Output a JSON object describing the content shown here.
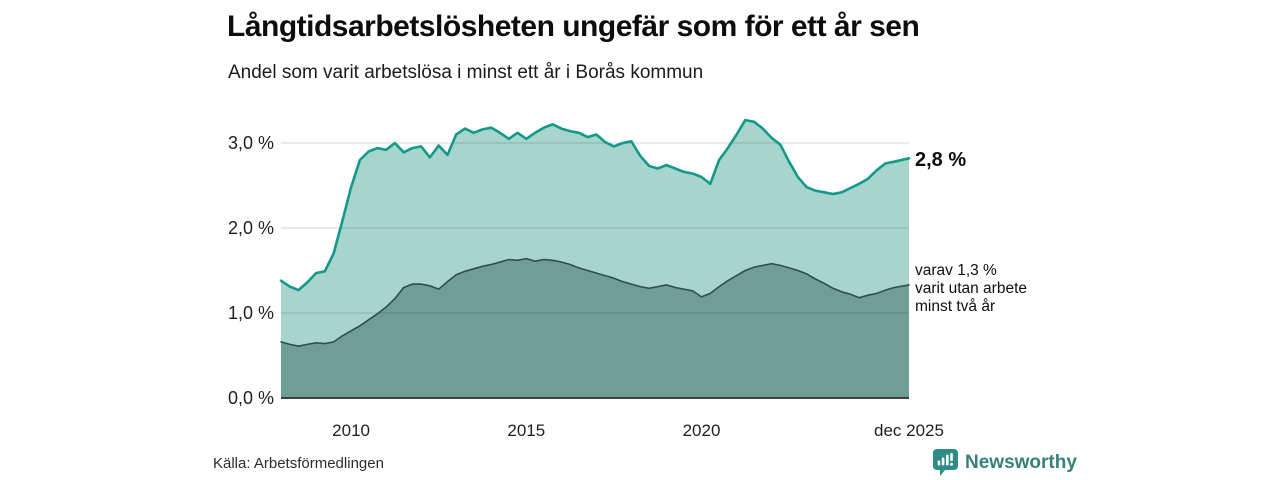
{
  "header": {
    "title": "Långtidsarbetslösheten ungefär som för ett år sen",
    "subtitle": "Andel som varit arbetslösa i minst ett år i Borås kommun"
  },
  "chart_data": {
    "type": "area",
    "title": "Långtidsarbetslösheten ungefär som för ett år sen",
    "xlabel": "",
    "ylabel": "",
    "unit": "%",
    "grid": true,
    "legend": "end-of-line labels",
    "x_axis": {
      "range": [
        2008.0,
        2025.92
      ],
      "ticks": [
        {
          "value": 2010,
          "label": "2010"
        },
        {
          "value": 2015,
          "label": "2015"
        },
        {
          "value": 2020,
          "label": "2020"
        },
        {
          "value": 2025.92,
          "label": "dec 2025"
        }
      ]
    },
    "y_axis": {
      "range": [
        0,
        3.3
      ],
      "ticks": [
        {
          "value": 0,
          "label": "0,0 %"
        },
        {
          "value": 1,
          "label": "1,0 %"
        },
        {
          "value": 2,
          "label": "2,0 %"
        },
        {
          "value": 3,
          "label": "3,0 %"
        }
      ]
    },
    "series": [
      {
        "id": "total",
        "name": "Andel som varit arbetslösa i minst ett år",
        "color": "#12998a",
        "fill": "#a7d4cc",
        "end_label": "2,8 %",
        "points": [
          [
            2008.0,
            1.38
          ],
          [
            2008.25,
            1.31
          ],
          [
            2008.5,
            1.27
          ],
          [
            2008.75,
            1.36
          ],
          [
            2009.0,
            1.47
          ],
          [
            2009.25,
            1.49
          ],
          [
            2009.5,
            1.7
          ],
          [
            2009.75,
            2.08
          ],
          [
            2010.0,
            2.48
          ],
          [
            2010.25,
            2.8
          ],
          [
            2010.5,
            2.9
          ],
          [
            2010.75,
            2.94
          ],
          [
            2011.0,
            2.92
          ],
          [
            2011.25,
            3.0
          ],
          [
            2011.5,
            2.89
          ],
          [
            2011.75,
            2.94
          ],
          [
            2012.0,
            2.96
          ],
          [
            2012.25,
            2.83
          ],
          [
            2012.5,
            2.97
          ],
          [
            2012.75,
            2.86
          ],
          [
            2013.0,
            3.1
          ],
          [
            2013.25,
            3.17
          ],
          [
            2013.5,
            3.12
          ],
          [
            2013.75,
            3.16
          ],
          [
            2014.0,
            3.18
          ],
          [
            2014.25,
            3.12
          ],
          [
            2014.5,
            3.05
          ],
          [
            2014.75,
            3.12
          ],
          [
            2015.0,
            3.05
          ],
          [
            2015.25,
            3.12
          ],
          [
            2015.5,
            3.18
          ],
          [
            2015.75,
            3.22
          ],
          [
            2016.0,
            3.17
          ],
          [
            2016.25,
            3.14
          ],
          [
            2016.5,
            3.12
          ],
          [
            2016.75,
            3.07
          ],
          [
            2017.0,
            3.1
          ],
          [
            2017.25,
            3.01
          ],
          [
            2017.5,
            2.96
          ],
          [
            2017.75,
            3.0
          ],
          [
            2018.0,
            3.02
          ],
          [
            2018.25,
            2.85
          ],
          [
            2018.5,
            2.73
          ],
          [
            2018.75,
            2.7
          ],
          [
            2019.0,
            2.74
          ],
          [
            2019.25,
            2.7
          ],
          [
            2019.5,
            2.66
          ],
          [
            2019.75,
            2.64
          ],
          [
            2020.0,
            2.6
          ],
          [
            2020.25,
            2.52
          ],
          [
            2020.5,
            2.8
          ],
          [
            2020.75,
            2.94
          ],
          [
            2021.0,
            3.1
          ],
          [
            2021.25,
            3.27
          ],
          [
            2021.5,
            3.25
          ],
          [
            2021.75,
            3.17
          ],
          [
            2022.0,
            3.06
          ],
          [
            2022.25,
            2.98
          ],
          [
            2022.5,
            2.78
          ],
          [
            2022.75,
            2.6
          ],
          [
            2023.0,
            2.48
          ],
          [
            2023.25,
            2.44
          ],
          [
            2023.5,
            2.42
          ],
          [
            2023.75,
            2.4
          ],
          [
            2024.0,
            2.42
          ],
          [
            2024.25,
            2.47
          ],
          [
            2024.5,
            2.52
          ],
          [
            2024.75,
            2.58
          ],
          [
            2025.0,
            2.68
          ],
          [
            2025.25,
            2.76
          ],
          [
            2025.5,
            2.78
          ],
          [
            2025.92,
            2.82
          ]
        ]
      },
      {
        "id": "two-years",
        "name": "varav utan arbete minst två år",
        "color": "#2f4f4a",
        "fill": "#6f9e96",
        "end_label": "varav 1,3 % varit utan arbete minst två år",
        "points": [
          [
            2008.0,
            0.66
          ],
          [
            2008.25,
            0.63
          ],
          [
            2008.5,
            0.61
          ],
          [
            2008.75,
            0.63
          ],
          [
            2009.0,
            0.65
          ],
          [
            2009.25,
            0.64
          ],
          [
            2009.5,
            0.66
          ],
          [
            2009.75,
            0.73
          ],
          [
            2010.0,
            0.79
          ],
          [
            2010.25,
            0.85
          ],
          [
            2010.5,
            0.92
          ],
          [
            2010.75,
            0.99
          ],
          [
            2011.0,
            1.07
          ],
          [
            2011.25,
            1.17
          ],
          [
            2011.5,
            1.3
          ],
          [
            2011.75,
            1.34
          ],
          [
            2012.0,
            1.34
          ],
          [
            2012.25,
            1.32
          ],
          [
            2012.5,
            1.28
          ],
          [
            2012.75,
            1.37
          ],
          [
            2013.0,
            1.45
          ],
          [
            2013.25,
            1.49
          ],
          [
            2013.5,
            1.52
          ],
          [
            2013.75,
            1.55
          ],
          [
            2014.0,
            1.57
          ],
          [
            2014.25,
            1.6
          ],
          [
            2014.5,
            1.63
          ],
          [
            2014.75,
            1.62
          ],
          [
            2015.0,
            1.64
          ],
          [
            2015.25,
            1.61
          ],
          [
            2015.5,
            1.63
          ],
          [
            2015.75,
            1.62
          ],
          [
            2016.0,
            1.6
          ],
          [
            2016.25,
            1.57
          ],
          [
            2016.5,
            1.53
          ],
          [
            2016.75,
            1.5
          ],
          [
            2017.0,
            1.47
          ],
          [
            2017.25,
            1.44
          ],
          [
            2017.5,
            1.41
          ],
          [
            2017.75,
            1.37
          ],
          [
            2018.0,
            1.34
          ],
          [
            2018.25,
            1.31
          ],
          [
            2018.5,
            1.29
          ],
          [
            2018.75,
            1.31
          ],
          [
            2019.0,
            1.33
          ],
          [
            2019.25,
            1.3
          ],
          [
            2019.5,
            1.28
          ],
          [
            2019.75,
            1.26
          ],
          [
            2020.0,
            1.19
          ],
          [
            2020.25,
            1.23
          ],
          [
            2020.5,
            1.31
          ],
          [
            2020.75,
            1.38
          ],
          [
            2021.0,
            1.44
          ],
          [
            2021.25,
            1.5
          ],
          [
            2021.5,
            1.54
          ],
          [
            2021.75,
            1.56
          ],
          [
            2022.0,
            1.58
          ],
          [
            2022.25,
            1.56
          ],
          [
            2022.5,
            1.53
          ],
          [
            2022.75,
            1.5
          ],
          [
            2023.0,
            1.46
          ],
          [
            2023.25,
            1.4
          ],
          [
            2023.5,
            1.35
          ],
          [
            2023.75,
            1.29
          ],
          [
            2024.0,
            1.25
          ],
          [
            2024.25,
            1.22
          ],
          [
            2024.5,
            1.18
          ],
          [
            2024.75,
            1.21
          ],
          [
            2025.0,
            1.23
          ],
          [
            2025.25,
            1.27
          ],
          [
            2025.5,
            1.3
          ],
          [
            2025.92,
            1.33
          ]
        ]
      }
    ]
  },
  "annotations": {
    "current_value": "2,8 %",
    "secondary_lines": [
      "varav 1,3 %",
      "varit utan arbete",
      "minst två år"
    ]
  },
  "footer": {
    "source": "Källa: Arbetsförmedlingen",
    "brand": "Newsworthy"
  },
  "colors": {
    "series_total_line": "#12998a",
    "series_total_fill": "#a7d4cc",
    "series_two_years_line": "#2f4f4a",
    "series_two_years_fill": "#6f9e96",
    "brand_teal": "#35807b",
    "axis_line": "#3e3e3e"
  }
}
